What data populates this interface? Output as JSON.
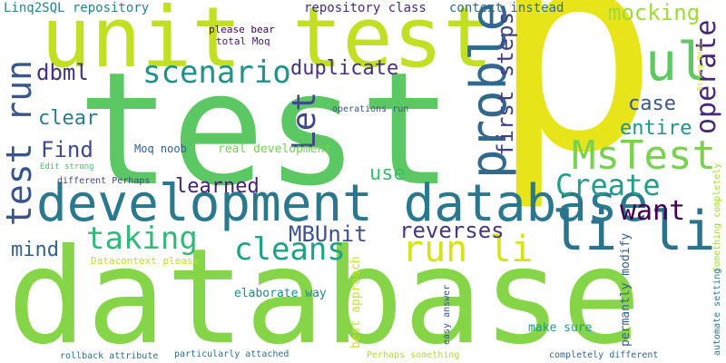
{
  "word_cloud": {
    "words": [
      {
        "text": "p",
        "color": "#e8e41a"
      },
      {
        "text": "test",
        "color": "#5cc863"
      },
      {
        "text": "database",
        "color": "#86d549"
      },
      {
        "text": "unit test",
        "color": "#c2df23"
      },
      {
        "text": "development database",
        "color": "#2a788e"
      },
      {
        "text": "ul",
        "color": "#5ec962"
      },
      {
        "text": "li li",
        "color": "#2c728e"
      },
      {
        "text": "problem",
        "color": "#31688e"
      },
      {
        "text": "MsTest",
        "color": "#7ad151"
      },
      {
        "text": "test run",
        "color": "#39568c"
      },
      {
        "text": "scenario",
        "color": "#21918c"
      },
      {
        "text": "Let",
        "color": "#3f4889"
      },
      {
        "text": "operate",
        "color": "#482878"
      },
      {
        "text": "Create",
        "color": "#1f9e89"
      },
      {
        "text": "run li",
        "color": "#d8e219"
      },
      {
        "text": "cleans",
        "color": "#1fa187"
      },
      {
        "text": "taking",
        "color": "#35b779"
      },
      {
        "text": "want",
        "color": "#440154"
      },
      {
        "text": "reverses",
        "color": "#443983"
      },
      {
        "text": "MBUnit",
        "color": "#3b528b"
      },
      {
        "text": "first steps",
        "color": "#424086"
      },
      {
        "text": "duplicate",
        "color": "#46327e"
      },
      {
        "text": "mocking",
        "color": "#a0da39"
      },
      {
        "text": "dbml",
        "color": "#46337f"
      },
      {
        "text": "clear",
        "color": "#277f8e"
      },
      {
        "text": "Find",
        "color": "#3e4a89"
      },
      {
        "text": "learned",
        "color": "#481f70"
      },
      {
        "text": "entire",
        "color": "#1f968b"
      },
      {
        "text": "case",
        "color": "#38588c"
      },
      {
        "text": "mind",
        "color": "#33628d"
      },
      {
        "text": "use",
        "color": "#3dbc74"
      },
      {
        "text": "Linq2SQL repository",
        "color": "#25858e"
      },
      {
        "text": "repository class",
        "color": "#472c7a"
      },
      {
        "text": "context instead",
        "color": "#31688e"
      },
      {
        "text": "please bear",
        "color": "#440154"
      },
      {
        "text": "total Moq",
        "color": "#481769"
      },
      {
        "text": "operations run",
        "color": "#3b528b"
      },
      {
        "text": "Moq noob",
        "color": "#355e8d"
      },
      {
        "text": "real development",
        "color": "#75d054"
      },
      {
        "text": "Edit strong",
        "color": "#4ac16d"
      },
      {
        "text": "different Perhaps",
        "color": "#3f4788"
      },
      {
        "text": "Datacontext please",
        "color": "#bddf26"
      },
      {
        "text": "elaborate way",
        "color": "#228c8d"
      },
      {
        "text": "best approach",
        "color": "#cae11f"
      },
      {
        "text": "easy answer",
        "color": "#3a548c"
      },
      {
        "text": "permantly modify",
        "color": "#365c8d"
      },
      {
        "text": "make sure",
        "color": "#1e9b8a"
      },
      {
        "text": "rollback attribute",
        "color": "#2e6e8e"
      },
      {
        "text": "particularly attached",
        "color": "#2d708e"
      },
      {
        "text": "Perhaps something",
        "color": "#b0dd2f"
      },
      {
        "text": "completely different",
        "color": "#32648e"
      },
      {
        "text": "Strong Edit",
        "color": "#c8e020"
      },
      {
        "text": "Something completely",
        "color": "#a2da37"
      },
      {
        "text": "automate setting",
        "color": "#2a788e"
      }
    ]
  }
}
